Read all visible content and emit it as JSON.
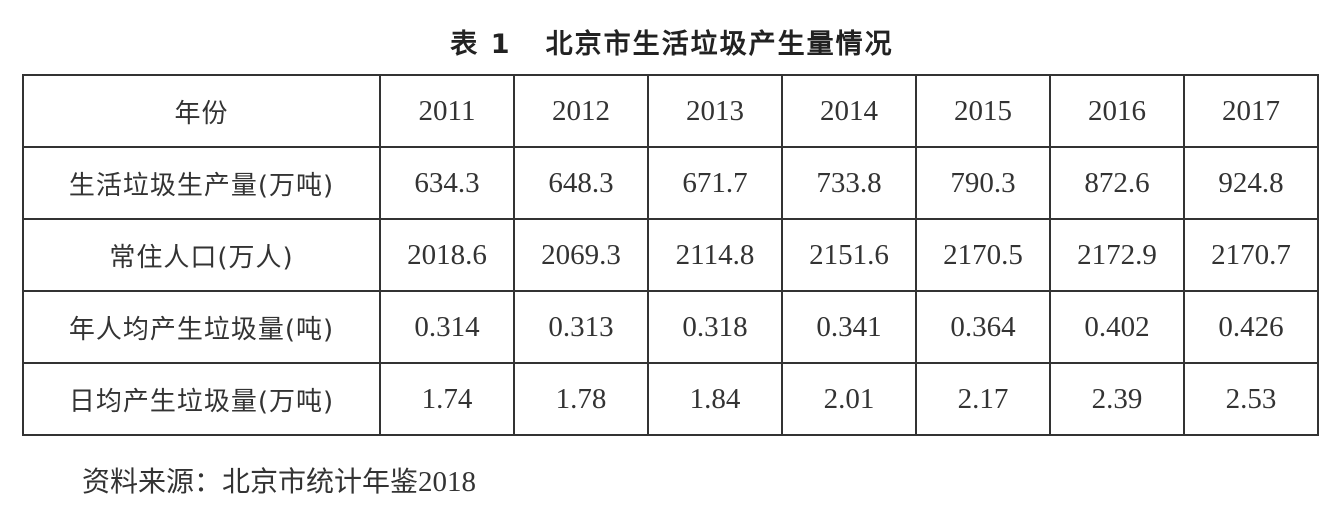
{
  "title": "表 1   北京市生活垃圾产生量情况",
  "table": {
    "header": {
      "label": "年份",
      "years": [
        "2011",
        "2012",
        "2013",
        "2014",
        "2015",
        "2016",
        "2017"
      ]
    },
    "rows": [
      {
        "label": "生活垃圾生产量(万吨)",
        "values": [
          "634.3",
          "648.3",
          "671.7",
          "733.8",
          "790.3",
          "872.6",
          "924.8"
        ]
      },
      {
        "label": "常住人口(万人)",
        "values": [
          "2018.6",
          "2069.3",
          "2114.8",
          "2151.6",
          "2170.5",
          "2172.9",
          "2170.7"
        ]
      },
      {
        "label": "年人均产生垃圾量(吨)",
        "values": [
          "0.314",
          "0.313",
          "0.318",
          "0.341",
          "0.364",
          "0.402",
          "0.426"
        ]
      },
      {
        "label": "日均产生垃圾量(万吨)",
        "values": [
          "1.74",
          "1.78",
          "1.84",
          "2.01",
          "2.17",
          "2.39",
          "2.53"
        ]
      }
    ]
  },
  "source": {
    "prefix": "资料来源：北京市统计年鉴",
    "year": "2018"
  }
}
